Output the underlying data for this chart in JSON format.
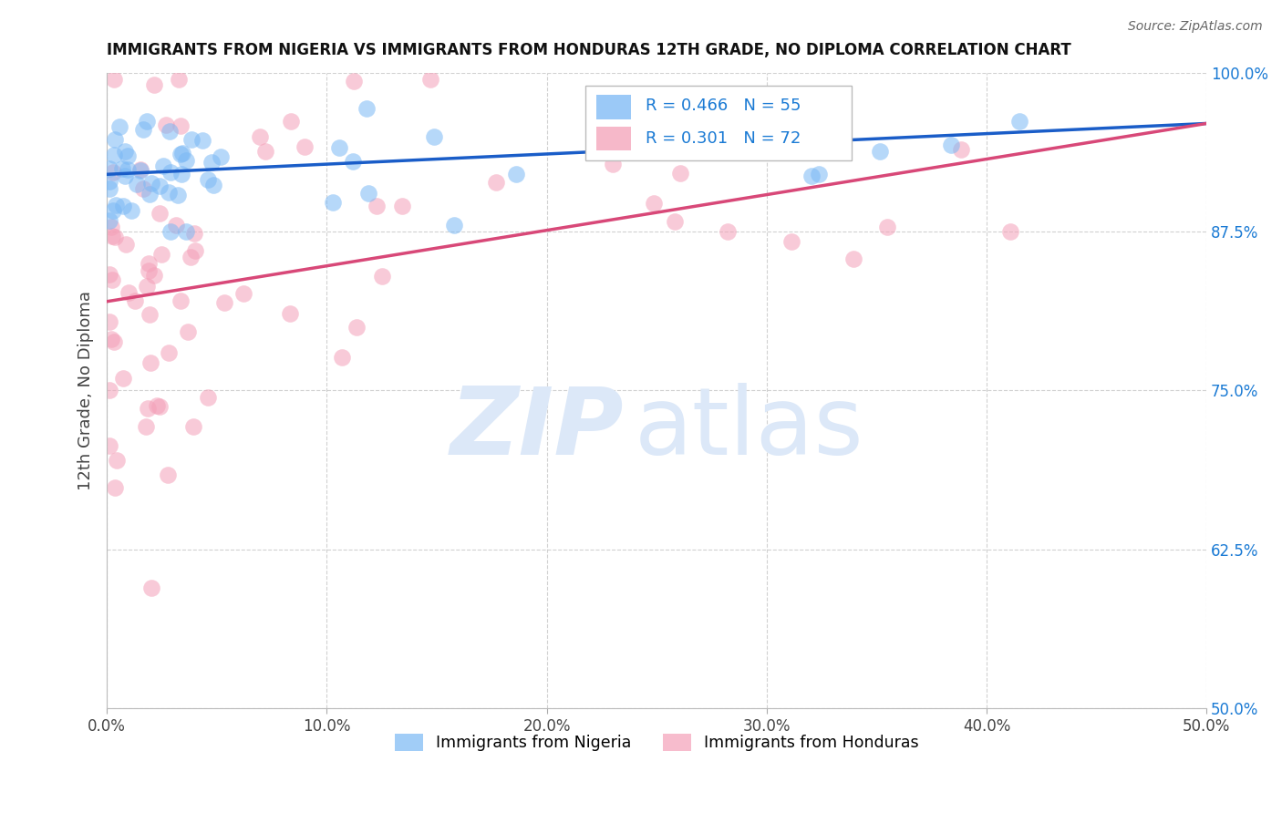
{
  "title": "IMMIGRANTS FROM NIGERIA VS IMMIGRANTS FROM HONDURAS 12TH GRADE, NO DIPLOMA CORRELATION CHART",
  "source": "Source: ZipAtlas.com",
  "ylabel_label": "12th Grade, No Diploma",
  "ylabel_ticks": [
    "50.0%",
    "62.5%",
    "75.0%",
    "87.5%",
    "100.0%"
  ],
  "ylabel_vals": [
    0.5,
    0.625,
    0.75,
    0.875,
    1.0
  ],
  "xtick_labels": [
    "0.0%",
    "10.0%",
    "20.0%",
    "30.0%",
    "40.0%",
    "50.0%"
  ],
  "xtick_vals": [
    0.0,
    0.1,
    0.2,
    0.3,
    0.4,
    0.5
  ],
  "xmin": 0.0,
  "xmax": 0.5,
  "ymin": 0.5,
  "ymax": 1.0,
  "nigeria_R": 0.466,
  "nigeria_N": 55,
  "honduras_R": 0.301,
  "honduras_N": 72,
  "nigeria_color": "#7ab8f5",
  "honduras_color": "#f4a0b8",
  "nigeria_line_color": "#1a5dc8",
  "honduras_line_color": "#d84878",
  "nigeria_line_y0": 0.92,
  "nigeria_line_y1": 0.96,
  "honduras_line_y0": 0.82,
  "honduras_line_y1": 0.96,
  "watermark_color": "#dce8f8",
  "legend_R_color": "#1a7ad4",
  "tick_color_y": "#1a7ad4",
  "tick_color_x": "#444444",
  "title_color": "#111111",
  "source_color": "#666666"
}
